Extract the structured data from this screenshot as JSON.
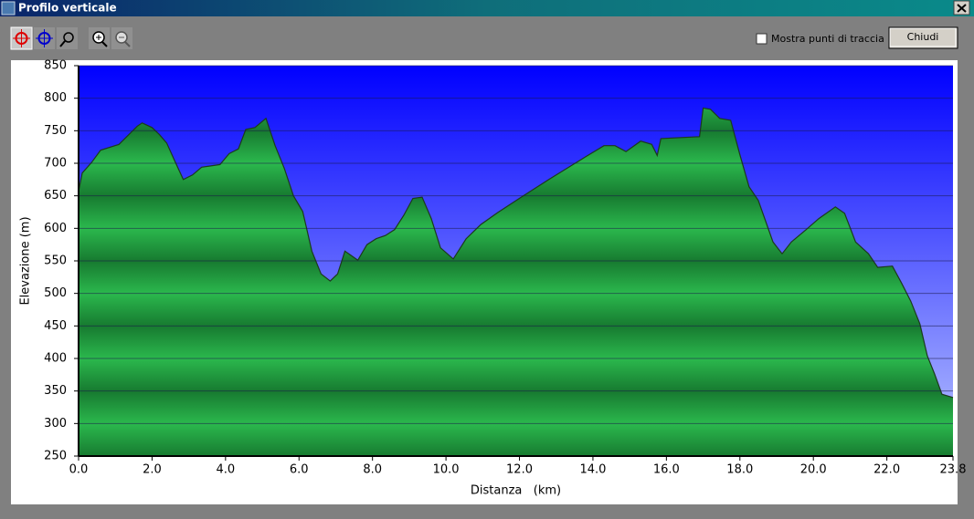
{
  "window": {
    "title": "Profilo verticale",
    "checkbox_label": "Mostra punti di traccia",
    "button_label": "Chiudi"
  },
  "chart_data": {
    "type": "area",
    "xlabel": "Distanza   (km)",
    "ylabel": "Elevazione (m)",
    "color": "#22a848",
    "x": [
      0,
      0.1,
      0.35,
      0.6,
      1.1,
      1.6,
      1.73,
      2.0,
      2.2,
      2.4,
      2.6,
      2.85,
      3.1,
      3.35,
      3.6,
      3.85,
      4.1,
      4.35,
      4.55,
      4.8,
      5.1,
      5.35,
      5.6,
      5.85,
      6.1,
      6.35,
      6.6,
      6.85,
      7.05,
      7.25,
      7.6,
      7.85,
      8.1,
      8.35,
      8.6,
      8.85,
      9.1,
      9.35,
      9.6,
      9.85,
      10.2,
      10.55,
      10.95,
      11.4,
      12.05,
      12.8,
      13.8,
      14.3,
      14.6,
      14.9,
      15.3,
      15.6,
      15.75,
      15.85,
      16.9,
      17.0,
      17.2,
      17.45,
      17.75,
      18.0,
      18.25,
      18.5,
      18.9,
      19.15,
      19.4,
      19.8,
      20.15,
      20.6,
      20.85,
      21.15,
      21.5,
      21.75,
      22.15,
      22.4,
      22.65,
      22.9,
      23.1,
      23.3,
      23.5,
      23.8
    ],
    "values": [
      657,
      685,
      701,
      720,
      729,
      757,
      762,
      755,
      744,
      731,
      706,
      675,
      682,
      694,
      696,
      698,
      715,
      722,
      752,
      755,
      769,
      727,
      692,
      650,
      626,
      565,
      530,
      519,
      530,
      565,
      551,
      575,
      584,
      589,
      598,
      620,
      646,
      648,
      615,
      570,
      553,
      584,
      606,
      624,
      648,
      675,
      710,
      727,
      727,
      718,
      734,
      729,
      712,
      738,
      741,
      785,
      783,
      769,
      766,
      713,
      664,
      643,
      579,
      561,
      579,
      598,
      615,
      633,
      623,
      579,
      561,
      540,
      542,
      516,
      488,
      453,
      404,
      376,
      345,
      340
    ],
    "xlim": [
      0,
      23.8
    ],
    "xticks": [
      {
        "value": 0,
        "label": "0.0"
      },
      {
        "value": 2,
        "label": "2.0"
      },
      {
        "value": 4,
        "label": "4.0"
      },
      {
        "value": 6,
        "label": "6.0"
      },
      {
        "value": 8,
        "label": "8.0"
      },
      {
        "value": 10,
        "label": "10.0"
      },
      {
        "value": 12,
        "label": "12.0"
      },
      {
        "value": 14,
        "label": "14.0"
      },
      {
        "value": 16,
        "label": "16.0"
      },
      {
        "value": 18,
        "label": "18.0"
      },
      {
        "value": 20,
        "label": "20.0"
      },
      {
        "value": 22,
        "label": "22.0"
      },
      {
        "value": 23.8,
        "label": "23.8"
      }
    ],
    "ylim": [
      250,
      850
    ],
    "yticks": [
      250,
      300,
      350,
      400,
      450,
      500,
      550,
      600,
      650,
      700,
      750,
      800,
      850
    ],
    "grid": true
  }
}
